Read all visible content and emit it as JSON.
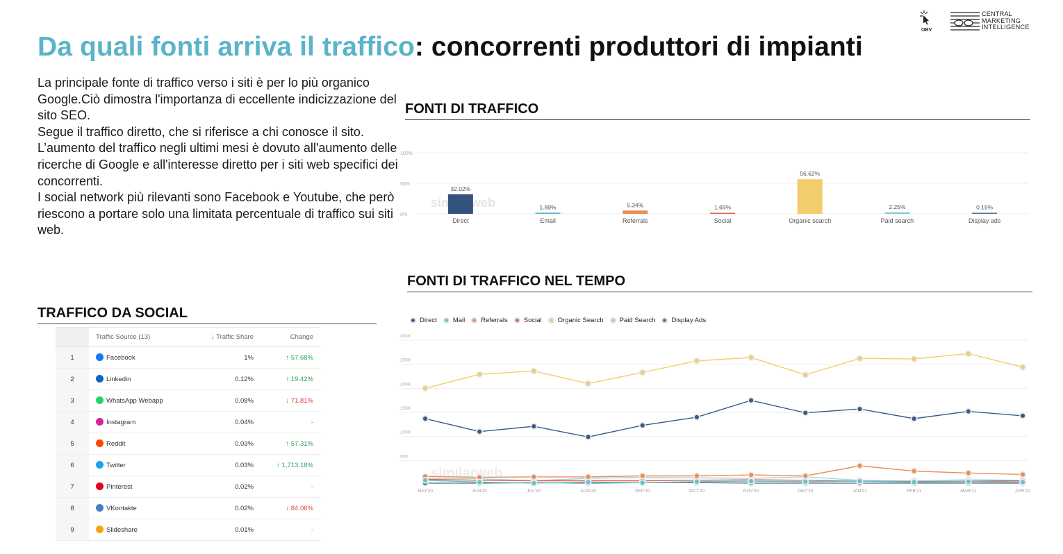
{
  "header": {
    "title_accent": "Da quali fonti arriva il traffico",
    "title_rest": ": concorrenti produttori di impianti"
  },
  "logo": {
    "line1": "CENTRAL",
    "line2": "MARKETING",
    "line3": "INTELLIGENCE",
    "badge": "OBV"
  },
  "intro": {
    "p1": "La principale fonte di traffico verso i siti è per lo più organico Google.Ciò dimostra l'importanza di eccellente indicizzazione del sito SEO.",
    "p2": "Segue il traffico diretto, che si riferisce a chi conosce il sito. L’aumento del traffico negli ultimi mesi è dovuto all'aumento delle ricerche di Google e all'interesse diretto per i siti web specifici dei concorrenti.",
    "p3": "I social network più rilevanti sono Facebook e Youtube, che però riescono a portare solo una limitata percentuale di traffico sui siti web."
  },
  "sections": {
    "fonti": "FONTI DI TRAFFICO",
    "tempo": "FONTI DI TRAFFICO NEL TEMPO",
    "social": "TRAFFICO DA SOCIAL"
  },
  "watermark": "similarweb",
  "social_table": {
    "headers": {
      "source": "Traffic Source (13)",
      "share": "↓ Traffic Share",
      "change": "Change"
    },
    "rows": [
      {
        "idx": "1",
        "name": "Facebook",
        "icon": "facebook-icon",
        "color": "#1877f2",
        "share": "1%",
        "change": "↑ 57.68%",
        "dir": "up"
      },
      {
        "idx": "2",
        "name": "Linkedin",
        "icon": "linkedin-icon",
        "color": "#0a66c2",
        "share": "0.12%",
        "change": "↑ 19.42%",
        "dir": "up"
      },
      {
        "idx": "3",
        "name": "WhatsApp Webapp",
        "icon": "whatsapp-icon",
        "color": "#25d366",
        "share": "0.08%",
        "change": "↓ 71.81%",
        "dir": "down"
      },
      {
        "idx": "4",
        "name": "Instagram",
        "icon": "instagram-icon",
        "color": "#d6249f",
        "share": "0.04%",
        "change": "-",
        "dir": "none"
      },
      {
        "idx": "5",
        "name": "Reddit",
        "icon": "reddit-icon",
        "color": "#ff4500",
        "share": "0.03%",
        "change": "↑ 57.31%",
        "dir": "up"
      },
      {
        "idx": "6",
        "name": "Twitter",
        "icon": "twitter-icon",
        "color": "#1da1f2",
        "share": "0.03%",
        "change": "↑ 1,713.18%",
        "dir": "up"
      },
      {
        "idx": "7",
        "name": "Pinterest",
        "icon": "pinterest-icon",
        "color": "#e60023",
        "share": "0.02%",
        "change": "-",
        "dir": "none"
      },
      {
        "idx": "8",
        "name": "VKontakte",
        "icon": "vkontakte-icon",
        "color": "#4680c2",
        "share": "0.02%",
        "change": "↓ 84.06%",
        "dir": "down"
      },
      {
        "idx": "9",
        "name": "Slideshare",
        "icon": "slideshare-icon",
        "color": "#f7a21b",
        "share": "0.01%",
        "change": "-",
        "dir": "none"
      }
    ]
  },
  "chart_data": [
    {
      "type": "bar",
      "categories": [
        "Direct",
        "Email",
        "Referrals",
        "Social",
        "Organic search",
        "Paid search",
        "Display ads"
      ],
      "values": [
        32.02,
        1.89,
        5.34,
        1.69,
        56.62,
        2.25,
        0.19
      ],
      "value_labels": [
        "32.02%",
        "1.89%",
        "5.34%",
        "1.69%",
        "56.62%",
        "2.25%",
        "0.19%"
      ],
      "colors": [
        "#33527c",
        "#5bb6c9",
        "#ef8c4e",
        "#e0634c",
        "#f2cd6b",
        "#7cc7d6",
        "#4a7690"
      ],
      "yticks": [
        "100%",
        "50%",
        "0%"
      ],
      "ylim": [
        0,
        100
      ],
      "grid": true
    },
    {
      "type": "line",
      "x": [
        "MAY'20",
        "JUN'20",
        "JUL'20",
        "AUG'20",
        "SEP'20",
        "OCT'20",
        "NOV'20",
        "DEC'20",
        "JAN'21",
        "FEB'21",
        "MAR'21",
        "APR'21"
      ],
      "yticks": [
        "300K",
        "250K",
        "200K",
        "150K",
        "100K",
        "50K"
      ],
      "ylim": [
        0,
        300000
      ],
      "legend_position": "top-left",
      "grid": true,
      "series": [
        {
          "name": "Direct",
          "color": "#3a5a86",
          "values": [
            137000,
            110000,
            121000,
            99000,
            123000,
            140000,
            175000,
            149000,
            157000,
            137000,
            152000,
            143000
          ]
        },
        {
          "name": "Mail",
          "color": "#67c1c9",
          "values": [
            9000,
            5000,
            3000,
            5000,
            4000,
            6000,
            7000,
            6000,
            7000,
            5000,
            6000,
            5000
          ]
        },
        {
          "name": "Referrals",
          "color": "#ef8c4e",
          "values": [
            17000,
            15000,
            16000,
            16000,
            18000,
            18000,
            20000,
            18000,
            39000,
            28000,
            24000,
            21000
          ]
        },
        {
          "name": "Social",
          "color": "#e0634c",
          "values": [
            11000,
            9000,
            8000,
            8000,
            8000,
            9000,
            10000,
            9000,
            7000,
            6000,
            7000,
            8000
          ]
        },
        {
          "name": "Organic Search",
          "color": "#f2cd6b",
          "values": [
            200000,
            229000,
            236000,
            210000,
            233000,
            257000,
            264000,
            228000,
            262000,
            261000,
            272000,
            244000
          ]
        },
        {
          "name": "Paid Search",
          "color": "#9fd6de",
          "values": [
            13000,
            12000,
            8000,
            13000,
            15000,
            14000,
            13000,
            16000,
            9000,
            8000,
            10000,
            9000
          ]
        },
        {
          "name": "Display Ads",
          "color": "#4a7690",
          "values": [
            3000,
            3000,
            4000,
            3000,
            4000,
            4000,
            3000,
            3000,
            3000,
            3000,
            3000,
            3000
          ]
        }
      ]
    }
  ]
}
